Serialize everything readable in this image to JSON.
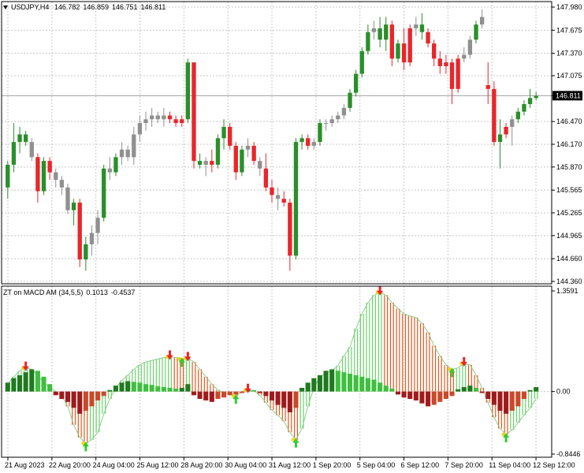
{
  "symbol_title": "USDJPY,H4",
  "ohlc": {
    "open": "146.782",
    "high": "146.859",
    "low": "146.751",
    "close": "146.811"
  },
  "indicator": {
    "name": "ZT on MACD AM (34,5,5)",
    "value1": "0.1013",
    "value2": "-0.4537"
  },
  "current_price_label": "146.811",
  "price_axis_labels": [
    "147.980",
    "147.675",
    "147.370",
    "147.075",
    "146.811",
    "146.470",
    "146.170",
    "145.870",
    "145.565",
    "145.265",
    "144.965",
    "144.660",
    "144.360"
  ],
  "indicator_axis_labels": [
    "1.3591",
    "0.00",
    "-0.8446"
  ],
  "time_labels": [
    "21 Aug 2023",
    "22 Aug 20:00",
    "24 Aug 04:00",
    "25 Aug 12:00",
    "28 Aug 20:00",
    "30 Aug 04:00",
    "31 Aug 12:00",
    "1 Sep 20:00",
    "5 Sep 04:00",
    "6 Sep 12:00",
    "7 Sep 20:00",
    "11 Sep 04:00",
    "12 Sep 12:00"
  ],
  "colors": {
    "bull": "#2a8f2a",
    "bear": "#e8262b",
    "neutral": "#909090",
    "hist_dark_green": "#1f7a1f",
    "hist_green": "#3fbf3f",
    "hist_dark_red": "#9e1c1c",
    "hist_red": "#c84a2a",
    "line_orange": "#e8591e",
    "line_green": "#6ad36a",
    "arrow_up": "#33cc33",
    "arrow_down": "#e8262b",
    "dot": "#f2d21b"
  },
  "chart_data": {
    "type": "candlestick",
    "price_range": [
      144.36,
      147.98
    ],
    "candles": [
      {
        "o": 145.6,
        "h": 145.95,
        "l": 145.45,
        "c": 145.9,
        "d": "up"
      },
      {
        "o": 145.9,
        "h": 146.45,
        "l": 145.8,
        "c": 146.2,
        "d": "up"
      },
      {
        "o": 146.2,
        "h": 146.4,
        "l": 146.05,
        "c": 146.3,
        "d": "up"
      },
      {
        "o": 146.3,
        "h": 146.35,
        "l": 146.15,
        "c": 146.2,
        "d": "up"
      },
      {
        "o": 146.2,
        "h": 146.25,
        "l": 145.95,
        "c": 146.0,
        "d": "neutral"
      },
      {
        "o": 146.0,
        "h": 146.05,
        "l": 145.4,
        "c": 145.55,
        "d": "down"
      },
      {
        "o": 145.55,
        "h": 146.0,
        "l": 145.5,
        "c": 145.95,
        "d": "up"
      },
      {
        "o": 145.95,
        "h": 146.0,
        "l": 145.7,
        "c": 145.8,
        "d": "down"
      },
      {
        "o": 145.8,
        "h": 145.85,
        "l": 145.6,
        "c": 145.7,
        "d": "neutral"
      },
      {
        "o": 145.7,
        "h": 145.75,
        "l": 145.5,
        "c": 145.6,
        "d": "neutral"
      },
      {
        "o": 145.6,
        "h": 145.65,
        "l": 145.25,
        "c": 145.3,
        "d": "neutral"
      },
      {
        "o": 145.3,
        "h": 145.45,
        "l": 145.1,
        "c": 145.4,
        "d": "up"
      },
      {
        "o": 145.4,
        "h": 145.45,
        "l": 144.55,
        "c": 144.65,
        "d": "down"
      },
      {
        "o": 144.65,
        "h": 144.95,
        "l": 144.5,
        "c": 144.85,
        "d": "up"
      },
      {
        "o": 144.85,
        "h": 145.1,
        "l": 144.7,
        "c": 145.0,
        "d": "neutral"
      },
      {
        "o": 145.0,
        "h": 145.3,
        "l": 144.85,
        "c": 145.2,
        "d": "neutral"
      },
      {
        "o": 145.2,
        "h": 145.9,
        "l": 145.15,
        "c": 145.85,
        "d": "up"
      },
      {
        "o": 145.85,
        "h": 146.0,
        "l": 145.7,
        "c": 145.8,
        "d": "neutral"
      },
      {
        "o": 145.8,
        "h": 146.05,
        "l": 145.75,
        "c": 146.0,
        "d": "up"
      },
      {
        "o": 146.0,
        "h": 146.2,
        "l": 145.9,
        "c": 146.1,
        "d": "neutral"
      },
      {
        "o": 146.1,
        "h": 146.15,
        "l": 145.95,
        "c": 146.0,
        "d": "neutral"
      },
      {
        "o": 146.0,
        "h": 146.4,
        "l": 145.9,
        "c": 146.3,
        "d": "neutral"
      },
      {
        "o": 146.3,
        "h": 146.55,
        "l": 146.2,
        "c": 146.45,
        "d": "neutral"
      },
      {
        "o": 146.45,
        "h": 146.6,
        "l": 146.35,
        "c": 146.5,
        "d": "neutral"
      },
      {
        "o": 146.5,
        "h": 146.65,
        "l": 146.4,
        "c": 146.55,
        "d": "neutral"
      },
      {
        "o": 146.55,
        "h": 146.6,
        "l": 146.45,
        "c": 146.5,
        "d": "neutral"
      },
      {
        "o": 146.5,
        "h": 146.65,
        "l": 146.4,
        "c": 146.55,
        "d": "neutral"
      },
      {
        "o": 146.55,
        "h": 146.6,
        "l": 146.45,
        "c": 146.5,
        "d": "down"
      },
      {
        "o": 146.5,
        "h": 146.55,
        "l": 146.4,
        "c": 146.45,
        "d": "down"
      },
      {
        "o": 146.45,
        "h": 146.55,
        "l": 146.4,
        "c": 146.5,
        "d": "down"
      },
      {
        "o": 146.5,
        "h": 147.3,
        "l": 146.45,
        "c": 147.25,
        "d": "up"
      },
      {
        "o": 147.25,
        "h": 147.25,
        "l": 145.85,
        "c": 145.95,
        "d": "down"
      },
      {
        "o": 145.95,
        "h": 146.05,
        "l": 145.85,
        "c": 145.9,
        "d": "up"
      },
      {
        "o": 145.9,
        "h": 146.0,
        "l": 145.75,
        "c": 145.95,
        "d": "neutral"
      },
      {
        "o": 145.95,
        "h": 146.1,
        "l": 145.8,
        "c": 145.9,
        "d": "down"
      },
      {
        "o": 145.9,
        "h": 146.3,
        "l": 145.85,
        "c": 146.25,
        "d": "up"
      },
      {
        "o": 146.25,
        "h": 146.5,
        "l": 146.1,
        "c": 146.4,
        "d": "up"
      },
      {
        "o": 146.4,
        "h": 146.45,
        "l": 146.1,
        "c": 146.15,
        "d": "down"
      },
      {
        "o": 146.15,
        "h": 146.2,
        "l": 145.7,
        "c": 145.8,
        "d": "down"
      },
      {
        "o": 145.8,
        "h": 146.15,
        "l": 145.75,
        "c": 146.1,
        "d": "up"
      },
      {
        "o": 146.1,
        "h": 146.25,
        "l": 146.0,
        "c": 146.15,
        "d": "neutral"
      },
      {
        "o": 146.15,
        "h": 146.2,
        "l": 145.9,
        "c": 145.95,
        "d": "down"
      },
      {
        "o": 145.95,
        "h": 146.0,
        "l": 145.75,
        "c": 145.85,
        "d": "neutral"
      },
      {
        "o": 145.85,
        "h": 146.05,
        "l": 145.55,
        "c": 145.6,
        "d": "down"
      },
      {
        "o": 145.6,
        "h": 145.7,
        "l": 145.4,
        "c": 145.5,
        "d": "down"
      },
      {
        "o": 145.5,
        "h": 145.6,
        "l": 145.3,
        "c": 145.45,
        "d": "neutral"
      },
      {
        "o": 145.45,
        "h": 145.55,
        "l": 145.35,
        "c": 145.4,
        "d": "down"
      },
      {
        "o": 145.4,
        "h": 145.45,
        "l": 144.5,
        "c": 144.7,
        "d": "down"
      },
      {
        "o": 144.7,
        "h": 146.25,
        "l": 144.65,
        "c": 146.2,
        "d": "up"
      },
      {
        "o": 146.2,
        "h": 146.3,
        "l": 146.1,
        "c": 146.25,
        "d": "up"
      },
      {
        "o": 146.25,
        "h": 146.3,
        "l": 146.1,
        "c": 146.15,
        "d": "down"
      },
      {
        "o": 146.15,
        "h": 146.25,
        "l": 146.1,
        "c": 146.2,
        "d": "neutral"
      },
      {
        "o": 146.2,
        "h": 146.5,
        "l": 146.15,
        "c": 146.45,
        "d": "up"
      },
      {
        "o": 146.45,
        "h": 146.5,
        "l": 146.35,
        "c": 146.45,
        "d": "neutral"
      },
      {
        "o": 146.45,
        "h": 146.55,
        "l": 146.4,
        "c": 146.5,
        "d": "neutral"
      },
      {
        "o": 146.5,
        "h": 146.6,
        "l": 146.45,
        "c": 146.55,
        "d": "neutral"
      },
      {
        "o": 146.55,
        "h": 146.7,
        "l": 146.5,
        "c": 146.65,
        "d": "neutral"
      },
      {
        "o": 146.65,
        "h": 146.9,
        "l": 146.6,
        "c": 146.85,
        "d": "up"
      },
      {
        "o": 146.85,
        "h": 147.15,
        "l": 146.8,
        "c": 147.1,
        "d": "up"
      },
      {
        "o": 147.1,
        "h": 147.45,
        "l": 147.05,
        "c": 147.4,
        "d": "up"
      },
      {
        "o": 147.4,
        "h": 147.75,
        "l": 147.35,
        "c": 147.65,
        "d": "up"
      },
      {
        "o": 147.65,
        "h": 147.8,
        "l": 147.55,
        "c": 147.7,
        "d": "neutral"
      },
      {
        "o": 147.7,
        "h": 147.85,
        "l": 147.45,
        "c": 147.55,
        "d": "up"
      },
      {
        "o": 147.55,
        "h": 147.85,
        "l": 147.4,
        "c": 147.75,
        "d": "up"
      },
      {
        "o": 147.75,
        "h": 147.8,
        "l": 147.2,
        "c": 147.3,
        "d": "down"
      },
      {
        "o": 147.3,
        "h": 147.55,
        "l": 147.25,
        "c": 147.5,
        "d": "up"
      },
      {
        "o": 147.5,
        "h": 147.7,
        "l": 147.15,
        "c": 147.25,
        "d": "down"
      },
      {
        "o": 147.25,
        "h": 147.75,
        "l": 147.2,
        "c": 147.7,
        "d": "down"
      },
      {
        "o": 147.7,
        "h": 147.85,
        "l": 147.6,
        "c": 147.75,
        "d": "neutral"
      },
      {
        "o": 147.75,
        "h": 147.9,
        "l": 147.55,
        "c": 147.65,
        "d": "up"
      },
      {
        "o": 147.65,
        "h": 147.7,
        "l": 147.45,
        "c": 147.5,
        "d": "down"
      },
      {
        "o": 147.5,
        "h": 147.55,
        "l": 147.2,
        "c": 147.3,
        "d": "down"
      },
      {
        "o": 147.3,
        "h": 147.4,
        "l": 147.1,
        "c": 147.2,
        "d": "down"
      },
      {
        "o": 147.2,
        "h": 147.35,
        "l": 147.1,
        "c": 147.25,
        "d": "down"
      },
      {
        "o": 147.25,
        "h": 147.3,
        "l": 146.7,
        "c": 146.9,
        "d": "down"
      },
      {
        "o": 146.9,
        "h": 147.35,
        "l": 146.85,
        "c": 147.3,
        "d": "down"
      },
      {
        "o": 147.3,
        "h": 147.45,
        "l": 147.25,
        "c": 147.35,
        "d": "neutral"
      },
      {
        "o": 147.35,
        "h": 147.6,
        "l": 147.3,
        "c": 147.55,
        "d": "neutral"
      },
      {
        "o": 147.55,
        "h": 147.8,
        "l": 147.5,
        "c": 147.75,
        "d": "up"
      },
      {
        "o": 147.75,
        "h": 147.95,
        "l": 147.7,
        "c": 147.85,
        "d": "neutral"
      },
      {
        "o": 146.95,
        "h": 147.25,
        "l": 146.7,
        "c": 146.9,
        "d": "down"
      },
      {
        "o": 146.9,
        "h": 147.0,
        "l": 146.15,
        "c": 146.2,
        "d": "down"
      },
      {
        "o": 146.2,
        "h": 146.5,
        "l": 145.85,
        "c": 146.3,
        "d": "up"
      },
      {
        "o": 146.3,
        "h": 146.45,
        "l": 146.25,
        "c": 146.4,
        "d": "down"
      },
      {
        "o": 146.4,
        "h": 146.55,
        "l": 146.15,
        "c": 146.5,
        "d": "neutral"
      },
      {
        "o": 146.5,
        "h": 146.65,
        "l": 146.45,
        "c": 146.6,
        "d": "up"
      },
      {
        "o": 146.6,
        "h": 146.75,
        "l": 146.55,
        "c": 146.7,
        "d": "up"
      },
      {
        "o": 146.7,
        "h": 146.9,
        "l": 146.65,
        "c": 146.78,
        "d": "up"
      },
      {
        "o": 146.78,
        "h": 146.86,
        "l": 146.75,
        "c": 146.81,
        "d": "up"
      }
    ],
    "indicator_range": [
      -0.8446,
      1.3591
    ],
    "histogram": [
      0.12,
      0.18,
      0.22,
      0.26,
      0.3,
      0.28,
      0.2,
      0.1,
      -0.05,
      -0.1,
      -0.14,
      -0.22,
      -0.3,
      -0.26,
      -0.2,
      -0.12,
      -0.06,
      0.02,
      0.08,
      0.12,
      0.14,
      0.13,
      0.12,
      0.1,
      0.09,
      0.07,
      0.06,
      0.05,
      0.04,
      0.05,
      0.1,
      -0.05,
      -0.1,
      -0.12,
      -0.14,
      -0.1,
      -0.08,
      -0.05,
      -0.04,
      -0.02,
      0.03,
      0.02,
      -0.02,
      -0.06,
      -0.12,
      -0.18,
      -0.22,
      -0.28,
      -0.22,
      0.05,
      0.12,
      0.18,
      0.22,
      0.28,
      0.3,
      0.28,
      0.26,
      0.24,
      0.22,
      0.2,
      0.18,
      0.16,
      0.12,
      0.08,
      0.04,
      -0.04,
      -0.08,
      -0.1,
      -0.12,
      -0.16,
      -0.2,
      -0.18,
      -0.14,
      -0.1,
      -0.06,
      0.03,
      0.06,
      0.08,
      0.05,
      -0.02,
      -0.1,
      -0.18,
      -0.26,
      -0.3,
      -0.26,
      -0.2,
      -0.1,
      0.02,
      0.06
    ],
    "signal_line": [
      0.1,
      0.2,
      0.28,
      0.32,
      0.3,
      0.22,
      0.12,
      0.06,
      0.0,
      -0.06,
      -0.2,
      -0.45,
      -0.62,
      -0.7,
      -0.65,
      -0.55,
      -0.3,
      -0.1,
      0.05,
      0.15,
      0.22,
      0.3,
      0.36,
      0.4,
      0.42,
      0.44,
      0.46,
      0.47,
      0.46,
      0.44,
      0.45,
      0.4,
      0.3,
      0.2,
      0.1,
      0.02,
      -0.02,
      -0.04,
      -0.06,
      0.0,
      0.02,
      0.01,
      -0.05,
      -0.15,
      -0.25,
      -0.32,
      -0.4,
      -0.55,
      -0.65,
      -0.5,
      -0.2,
      0.05,
      0.2,
      0.25,
      0.28,
      0.35,
      0.48,
      0.6,
      0.85,
      1.05,
      1.2,
      1.3,
      1.34,
      1.3,
      1.2,
      1.12,
      1.05,
      1.02,
      1.0,
      0.92,
      0.8,
      0.62,
      0.48,
      0.36,
      0.3,
      0.32,
      0.38,
      0.36,
      0.22,
      0.05,
      -0.15,
      -0.35,
      -0.5,
      -0.58,
      -0.52,
      -0.42,
      -0.32,
      -0.22,
      -0.1
    ]
  }
}
